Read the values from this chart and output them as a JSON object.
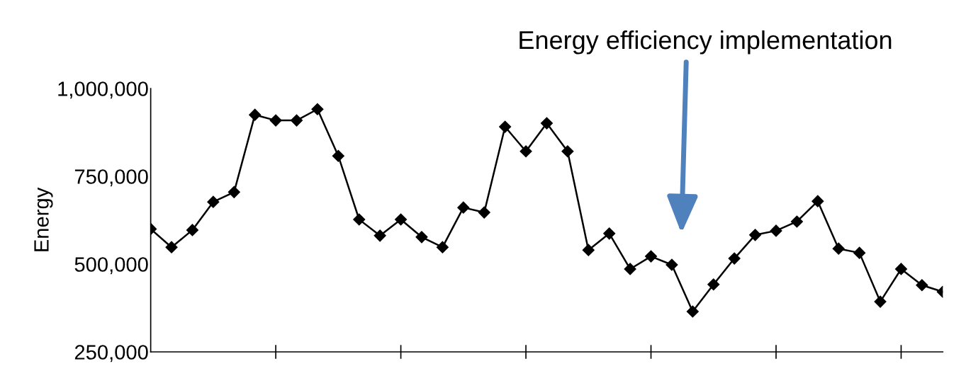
{
  "chart_data": {
    "type": "line",
    "ylabel": "Energy",
    "categories": [
      null,
      null,
      null,
      null,
      null,
      null,
      null,
      null,
      null,
      null,
      null,
      null,
      null,
      null,
      null,
      null,
      null,
      null,
      null,
      null,
      null,
      null,
      null,
      null,
      null,
      null,
      null,
      null,
      null,
      null,
      null,
      null,
      null,
      null,
      null,
      null,
      null,
      null,
      null
    ],
    "series": [
      {
        "color": "#000000",
        "values": [
          600000,
          548000,
          597000,
          677000,
          705000,
          925000,
          909000,
          909000,
          941000,
          808000,
          627000,
          581000,
          627000,
          577000,
          548000,
          661000,
          647000,
          891000,
          821000,
          901000,
          821000,
          540000,
          587000,
          486000,
          522000,
          498000,
          365000,
          442000,
          516000,
          583000,
          595000,
          621000,
          679000,
          544000,
          532000,
          393000,
          486000,
          440000,
          421000
        ]
      }
    ],
    "ylim": [
      250000,
      1000000
    ],
    "yticks": [
      {
        "value": 250000,
        "label": "250,000"
      },
      {
        "value": 500000,
        "label": "500,000"
      },
      {
        "value": 750000,
        "label": "750,000"
      },
      {
        "value": 1000000,
        "label": "1,000,000"
      }
    ],
    "annotations": [
      "Energy efficiency implementation"
    ],
    "marker": "diamond",
    "line_style": "solid",
    "grid": false,
    "legend": false
  }
}
